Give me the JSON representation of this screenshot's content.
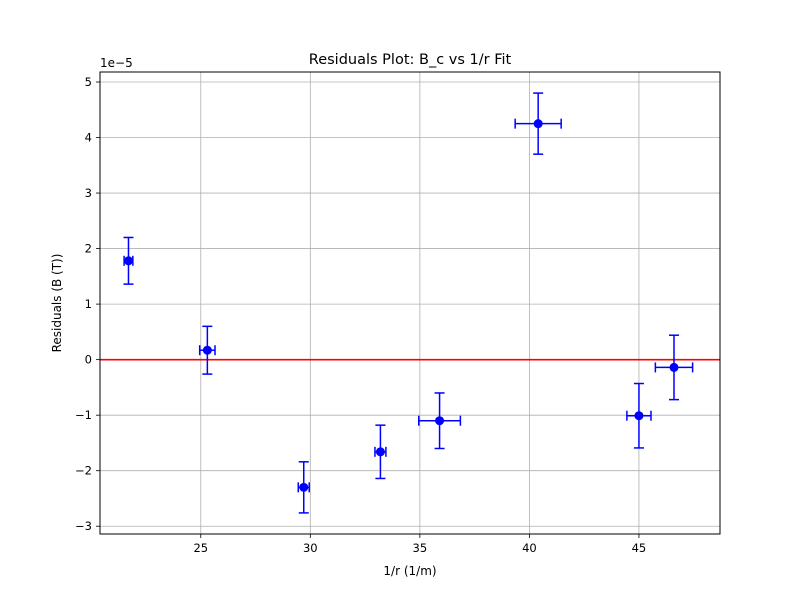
{
  "chart_data": {
    "type": "scatter",
    "title": "Residuals Plot: B_c vs 1/r Fit",
    "xlabel": "1/r (1/m)",
    "ylabel": "Residuals (B (T))",
    "y_offset_text": "1e−5",
    "y_scale_exponent": -5,
    "xlim": [
      20.4,
      48.7
    ],
    "ylim": [
      -3.14,
      5.18
    ],
    "xticks": [
      25,
      30,
      35,
      40,
      45
    ],
    "xtick_labels": [
      "25",
      "30",
      "35",
      "40",
      "45"
    ],
    "yticks": [
      -3,
      -2,
      -1,
      0,
      1,
      2,
      3,
      4,
      5
    ],
    "ytick_labels": [
      "−3",
      "−2",
      "−1",
      "0",
      "1",
      "2",
      "3",
      "4",
      "5"
    ],
    "grid": true,
    "reference_line": {
      "y": 0,
      "color": "#ff0000"
    },
    "marker_color": "#0000ff",
    "points": [
      {
        "x": 21.7,
        "y": 1.78,
        "xerr": 0.2,
        "yerr": 0.42
      },
      {
        "x": 25.3,
        "y": 0.17,
        "xerr": 0.35,
        "yerr": 0.43
      },
      {
        "x": 29.7,
        "y": -2.3,
        "xerr": 0.25,
        "yerr": 0.46
      },
      {
        "x": 33.2,
        "y": -1.66,
        "xerr": 0.25,
        "yerr": 0.48
      },
      {
        "x": 35.9,
        "y": -1.1,
        "xerr": 0.95,
        "yerr": 0.5
      },
      {
        "x": 40.4,
        "y": 4.25,
        "xerr": 1.05,
        "yerr": 0.55
      },
      {
        "x": 45.0,
        "y": -1.01,
        "xerr": 0.55,
        "yerr": 0.58
      },
      {
        "x": 46.6,
        "y": -0.14,
        "xerr": 0.85,
        "yerr": 0.58
      }
    ]
  }
}
